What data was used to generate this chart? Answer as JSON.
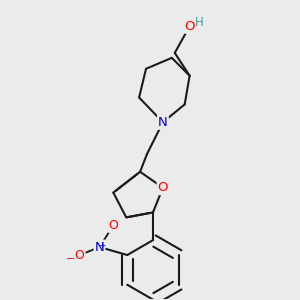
{
  "background_color": "#ebebeb",
  "bond_color": "#1a1a1a",
  "bond_width": 1.5,
  "atom_colors": {
    "O": "#ff0000",
    "N": "#0000cc",
    "H": "#4a9999"
  },
  "font_size": 9.5,
  "figsize": [
    3.0,
    3.0
  ],
  "dpi": 100
}
